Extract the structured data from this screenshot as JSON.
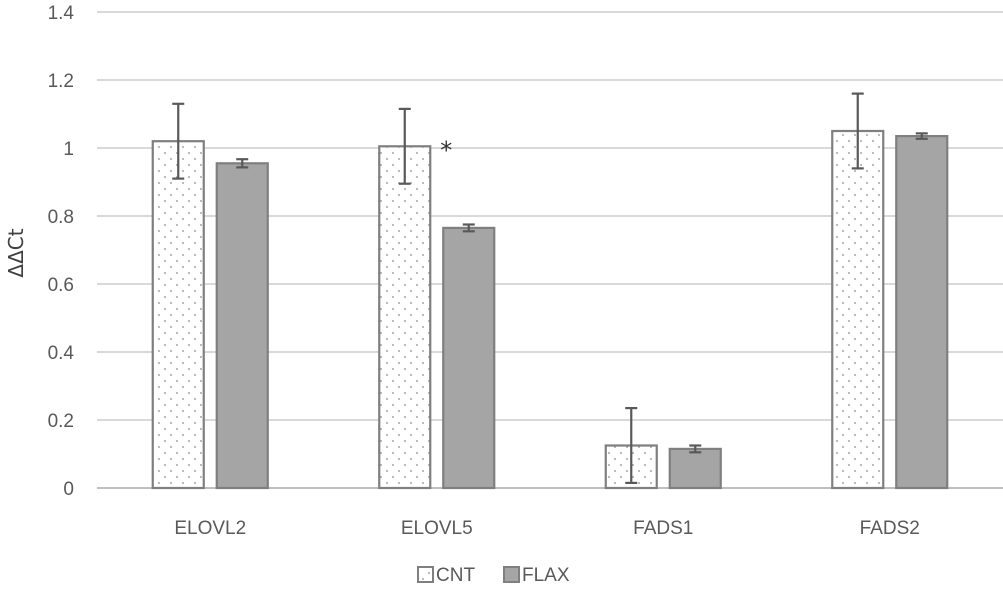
{
  "chart_data": {
    "type": "bar",
    "ylabel": "ΔΔCt",
    "ylim": [
      0,
      1.4
    ],
    "yticks": [
      "0",
      "0.2",
      "0.4",
      "0.6",
      "0.8",
      "1",
      "1.2",
      "1.4"
    ],
    "categories": [
      "ELOVL2",
      "ELOVL5",
      "FADS1",
      "FADS2"
    ],
    "series": [
      {
        "name": "CNT",
        "values": [
          1.02,
          1.005,
          0.125,
          1.05
        ],
        "errors": [
          0.11,
          0.11,
          0.11,
          0.11
        ],
        "fill": "#ffffff",
        "pattern": "dotted",
        "color": "#7f7f7f"
      },
      {
        "name": "FLAX",
        "values": [
          0.955,
          0.765,
          0.115,
          1.035
        ],
        "errors": [
          0.012,
          0.01,
          0.01,
          0.008
        ],
        "fill": "#a5a5a5",
        "color": "#7f7f7f"
      }
    ],
    "annotations": [
      {
        "text": "*",
        "category": "ELOVL5"
      }
    ],
    "grid": true,
    "legend": "bottom"
  }
}
